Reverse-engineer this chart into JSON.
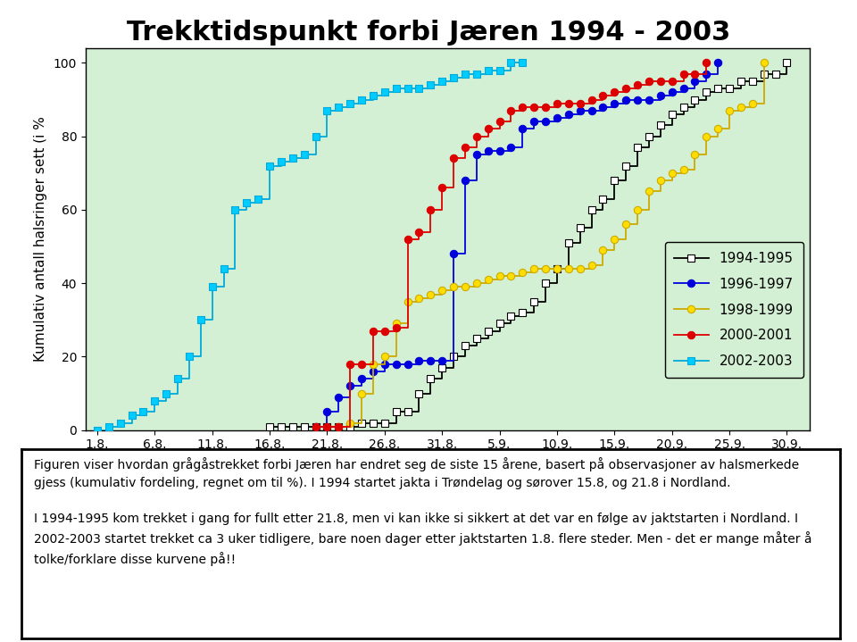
{
  "title": "Trekktidspunkt forbi Jæren 1994 - 2003",
  "ylabel": "Kumulativ antall halsringer sett (i %",
  "plot_bg": "#d4f0d4",
  "fig_bg": "#ffffff",
  "xtick_labels": [
    "1.8.",
    "6.8.",
    "11.8.",
    "16.8.",
    "21.8.",
    "26.8.",
    "31.8.",
    "5.9.",
    "10.9.",
    "15.9.",
    "20.9.",
    "25.9.",
    "30.9."
  ],
  "xtick_pos": [
    1,
    6,
    11,
    16,
    21,
    26,
    31,
    36,
    41,
    46,
    51,
    56,
    61
  ],
  "yticks": [
    0,
    20,
    40,
    60,
    80,
    100
  ],
  "xlim": [
    0,
    63
  ],
  "ylim": [
    0,
    104
  ],
  "caption_line1": "Figuren viser hvordan grågåstrekket forbi Jæren har endret seg de siste 15 årene, basert på observasjoner av halsmerkede",
  "caption_line2": "gjess (kumulativ fordeling, regnet om til %). I 1994 startet jakta i Trøndelag og sørover 15.8, og 21.8 i Nordland.",
  "caption_line3": "I 1994-1995 kom trekket i gang for fullt etter 21.8, men vi kan ikke si sikkert at det var en følge av jaktstarten i Nordland. I",
  "caption_line4": "2002-2003 startet trekket ca 3 uker tidligere, bare noen dager etter jaktstarten 1.8. flere steder. Men - det er mange måter å",
  "caption_line5": "tolke/forklare disse kurvene på!!",
  "s1994_x": [
    16,
    17,
    18,
    19,
    20,
    21,
    22,
    23,
    24,
    25,
    26,
    27,
    28,
    29,
    30,
    31,
    32,
    33,
    34,
    35,
    36,
    37,
    38,
    39,
    40,
    41,
    42,
    43,
    44,
    45,
    46,
    47,
    48,
    49,
    50,
    51,
    52,
    53,
    54,
    55,
    56,
    57,
    58,
    59,
    60,
    61
  ],
  "s1994_y": [
    1,
    1,
    1,
    1,
    1,
    1,
    1,
    1,
    2,
    2,
    2,
    5,
    5,
    10,
    14,
    17,
    20,
    23,
    25,
    27,
    29,
    31,
    32,
    35,
    40,
    44,
    51,
    55,
    60,
    63,
    68,
    72,
    77,
    80,
    83,
    86,
    88,
    90,
    92,
    93,
    93,
    95,
    95,
    97,
    97,
    100
  ],
  "s1996_x": [
    20,
    21,
    22,
    23,
    24,
    25,
    26,
    27,
    28,
    29,
    30,
    31,
    32,
    33,
    34,
    35,
    36,
    37,
    38,
    39,
    40,
    41,
    42,
    43,
    44,
    45,
    46,
    47,
    48,
    49,
    50,
    51,
    52,
    53,
    54,
    55
  ],
  "s1996_y": [
    1,
    5,
    9,
    12,
    14,
    16,
    18,
    18,
    18,
    19,
    19,
    19,
    48,
    68,
    75,
    76,
    76,
    77,
    82,
    84,
    84,
    85,
    86,
    87,
    87,
    88,
    89,
    90,
    90,
    90,
    91,
    92,
    93,
    95,
    97,
    100
  ],
  "s1998_x": [
    22,
    23,
    24,
    25,
    26,
    27,
    28,
    29,
    30,
    31,
    32,
    33,
    34,
    35,
    36,
    37,
    38,
    39,
    40,
    41,
    42,
    43,
    44,
    45,
    46,
    47,
    48,
    49,
    50,
    51,
    52,
    53,
    54,
    55,
    56,
    57,
    58,
    59
  ],
  "s1998_y": [
    1,
    2,
    10,
    18,
    20,
    29,
    35,
    36,
    37,
    38,
    39,
    39,
    40,
    41,
    42,
    42,
    43,
    44,
    44,
    44,
    44,
    44,
    45,
    49,
    52,
    56,
    60,
    65,
    68,
    70,
    71,
    75,
    80,
    82,
    87,
    88,
    89,
    100
  ],
  "s2000_x": [
    20,
    21,
    22,
    23,
    24,
    25,
    26,
    27,
    28,
    29,
    30,
    31,
    32,
    33,
    34,
    35,
    36,
    37,
    38,
    39,
    40,
    41,
    42,
    43,
    44,
    45,
    46,
    47,
    48,
    49,
    50,
    51,
    52,
    53,
    54
  ],
  "s2000_y": [
    1,
    1,
    1,
    18,
    18,
    27,
    27,
    28,
    52,
    54,
    60,
    66,
    74,
    77,
    80,
    82,
    84,
    87,
    88,
    88,
    88,
    89,
    89,
    89,
    90,
    91,
    92,
    93,
    94,
    95,
    95,
    95,
    97,
    97,
    100
  ],
  "s2002_x": [
    1,
    2,
    3,
    4,
    5,
    6,
    7,
    8,
    9,
    10,
    11,
    12,
    13,
    14,
    15,
    16,
    17,
    18,
    19,
    20,
    21,
    22,
    23,
    24,
    25,
    26,
    27,
    28,
    29,
    30,
    31,
    32,
    33,
    34,
    35,
    36,
    37,
    38
  ],
  "s2002_y": [
    0,
    1,
    2,
    4,
    5,
    8,
    10,
    14,
    20,
    30,
    39,
    44,
    60,
    62,
    63,
    72,
    73,
    74,
    75,
    80,
    87,
    88,
    89,
    90,
    91,
    92,
    93,
    93,
    93,
    94,
    95,
    96,
    97,
    97,
    98,
    98,
    100,
    100
  ],
  "legend_labels": [
    "1994-1995",
    "1996-1997",
    "1998-1999",
    "2000-2001",
    "2002-2003"
  ],
  "colors": [
    "#000000",
    "#0000dd",
    "#ccaa00",
    "#dd0000",
    "#00aadd"
  ],
  "marker_colors": [
    "#ffffff",
    "#0000dd",
    "#ffdd00",
    "#dd0000",
    "#00ccff"
  ],
  "markers": [
    "s",
    "o",
    "o",
    "o",
    "s"
  ]
}
